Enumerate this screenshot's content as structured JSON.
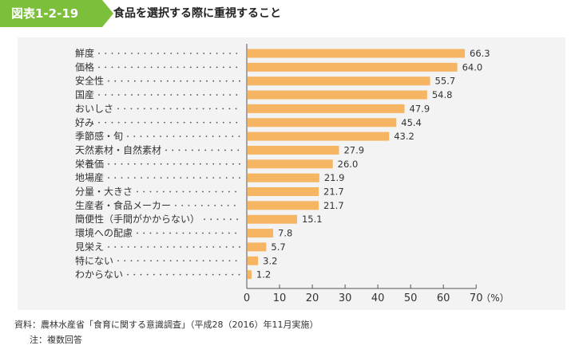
{
  "figure": {
    "number": "図表1-2-19",
    "title": "食品を選択する際に重視すること"
  },
  "colors": {
    "accent": "#7bbf3a",
    "bar": "#f5b562",
    "panel": "#f3f3f3"
  },
  "chart_data": {
    "type": "bar",
    "orientation": "horizontal",
    "categories": [
      "鮮度",
      "価格",
      "安全性",
      "国産",
      "おいしさ",
      "好み",
      "季節感・旬",
      "天然素材・自然素材",
      "栄養価",
      "地場産",
      "分量・大きさ",
      "生産者・食品メーカー",
      "簡便性（手間がかからない）",
      "環境への配慮",
      "見栄え",
      "特にない",
      "わからない"
    ],
    "values": [
      66.3,
      64.0,
      55.7,
      54.8,
      47.9,
      45.4,
      43.2,
      27.9,
      26.0,
      21.9,
      21.7,
      21.7,
      15.1,
      7.8,
      5.7,
      3.2,
      1.2
    ],
    "value_labels": [
      "66.3",
      "64.0",
      "55.7",
      "54.8",
      "47.9",
      "45.4",
      "43.2",
      "27.9",
      "26.0",
      "21.9",
      "21.7",
      "21.7",
      "15.1",
      "7.8",
      "5.7",
      "3.2",
      "1.2"
    ],
    "xlim": [
      0,
      70
    ],
    "ticks": [
      0,
      10,
      20,
      30,
      40,
      50,
      60,
      70
    ],
    "unit": "（%）",
    "grid": false
  },
  "notes": {
    "source": "資料：農林水産省「食育に関する意識調査」（平成28（2016）年11月実施）",
    "note": "注：複数回答"
  }
}
